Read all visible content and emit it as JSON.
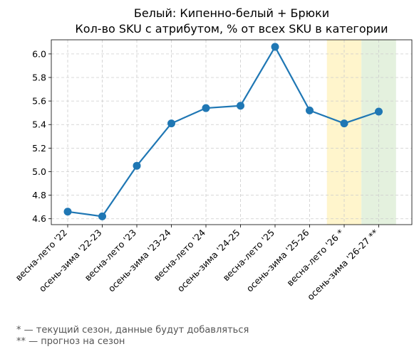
{
  "chart_data": {
    "type": "line",
    "title": [
      "Белый: Кипенно-белый + Брюки",
      "Кол-во SKU с атрибутом, % от всех SKU в категории"
    ],
    "categories": [
      "весна-лето '22",
      "осень-зима '22-23",
      "весна-лето '23",
      "осень-зима '23-24",
      "весна-лето '24",
      "осень-зима '24-25",
      "весна-лето '25",
      "осень-зима '25-26",
      "весна-лето '26 *",
      "осень-зима '26-27 **"
    ],
    "values": [
      4.66,
      4.62,
      5.05,
      5.41,
      5.54,
      5.56,
      6.06,
      5.52,
      5.41,
      5.51
    ],
    "ylim": [
      4.55,
      6.12
    ],
    "yticks": [
      "4.6",
      "4.8",
      "5.0",
      "5.2",
      "5.4",
      "5.6",
      "5.8",
      "6.0"
    ],
    "grid": true,
    "line_color": "#1f77b4",
    "highlights": [
      {
        "category_index": 8,
        "color": "#fff5cc",
        "meaning": "current season"
      },
      {
        "category_index": 9,
        "color": "#e4f1de",
        "meaning": "forecast"
      }
    ]
  },
  "footnotes": {
    "current": "* — текущий сезон, данные будут добавляться",
    "forecast": "** — прогноз на сезон"
  }
}
